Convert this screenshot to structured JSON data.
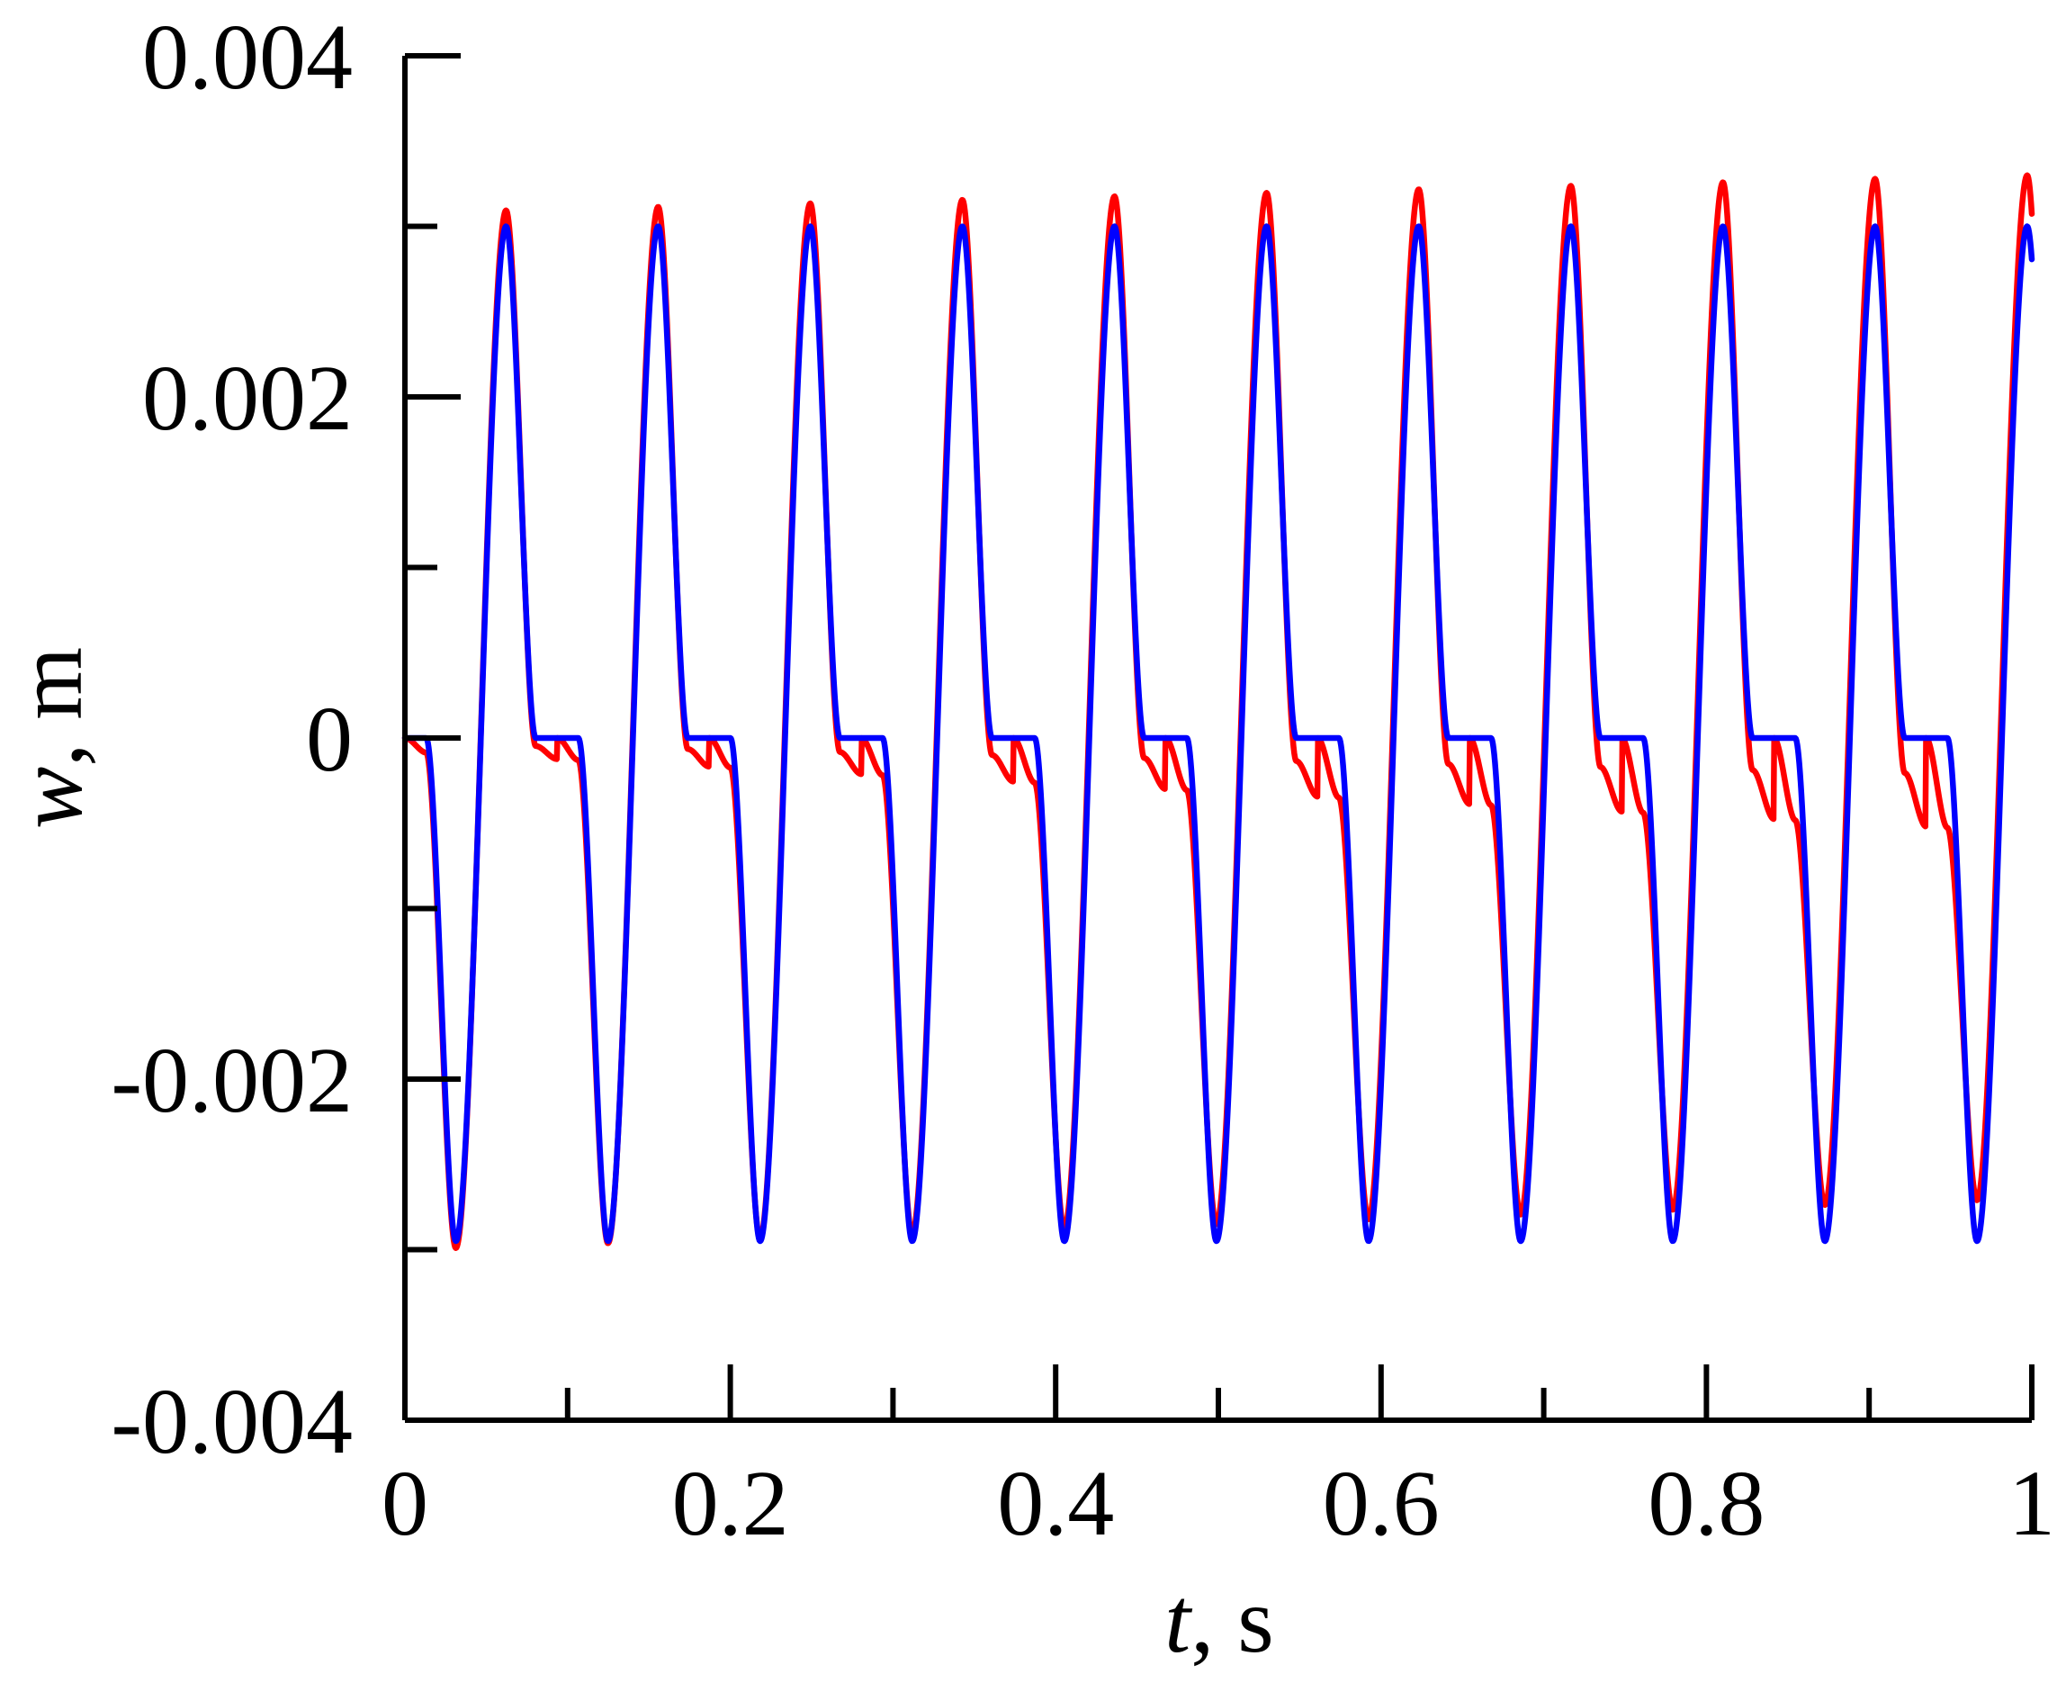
{
  "chart_data": {
    "type": "line",
    "xlabel": {
      "var": "t",
      "unit": ", s"
    },
    "ylabel": {
      "var": "w",
      "unit": ", m"
    },
    "xlim": [
      0,
      1
    ],
    "ylim": [
      -0.004,
      0.004
    ],
    "x_ticks_major": [
      "0",
      "0.2",
      "0.4",
      "0.6",
      "0.8",
      "1"
    ],
    "x_tick_values": [
      0,
      0.2,
      0.4,
      0.6,
      0.8,
      1
    ],
    "x_minor_step": 0.1,
    "y_ticks_major": [
      "-0.004",
      "-0.002",
      "0",
      "0.002",
      "0.004"
    ],
    "y_tick_values": [
      -0.004,
      -0.002,
      0,
      0.002,
      0.004
    ],
    "y_minor_step": 0.001,
    "grid": false,
    "legend": "none",
    "series": [
      {
        "color": "#ff0000",
        "period": 0.0935,
        "peak_start": 0.00308,
        "peak_end": 0.0033,
        "trough_start": -0.003,
        "trough_end": -0.0027,
        "shelf_start": -8e-05,
        "shelf_end": -0.00055,
        "points": [
          [
            0.0,
            0.0
          ],
          [
            0.016,
            -0.0012
          ],
          [
            0.031,
            -0.003
          ],
          [
            0.047,
            -0.0005
          ],
          [
            0.062,
            0.00308
          ],
          [
            0.078,
            0.001
          ],
          [
            0.094,
            -8e-05
          ],
          [
            0.125,
            -0.003
          ],
          [
            0.156,
            0.0031
          ],
          [
            0.25,
            0.00313
          ],
          [
            0.344,
            0.00315
          ],
          [
            0.437,
            0.00318
          ],
          [
            0.531,
            0.0032
          ],
          [
            0.624,
            0.00322
          ],
          [
            0.718,
            0.00324
          ],
          [
            0.811,
            0.00326
          ],
          [
            0.905,
            0.00328
          ],
          [
            0.96,
            -0.0027
          ],
          [
            1.0,
            0.0031
          ]
        ]
      },
      {
        "color": "#0000ff",
        "period": 0.0935,
        "peak_start": 0.003,
        "peak_end": 0.003,
        "trough_start": -0.00295,
        "trough_end": -0.00295,
        "shelf_start": 0.0,
        "shelf_end": 0.0,
        "points": [
          [
            0.0,
            0.0
          ],
          [
            0.016,
            -0.0012
          ],
          [
            0.031,
            -0.00295
          ],
          [
            0.047,
            -0.0005
          ],
          [
            0.062,
            0.003
          ],
          [
            0.078,
            0.001
          ],
          [
            0.094,
            0.0
          ],
          [
            0.125,
            -0.00295
          ],
          [
            0.156,
            0.003
          ],
          [
            0.25,
            0.003
          ],
          [
            0.344,
            0.003
          ],
          [
            0.437,
            0.003
          ],
          [
            0.531,
            0.003
          ],
          [
            0.624,
            0.003
          ],
          [
            0.718,
            0.003
          ],
          [
            0.811,
            0.003
          ],
          [
            0.905,
            0.003
          ],
          [
            0.965,
            -0.00295
          ],
          [
            1.0,
            0.0026
          ]
        ]
      }
    ]
  }
}
